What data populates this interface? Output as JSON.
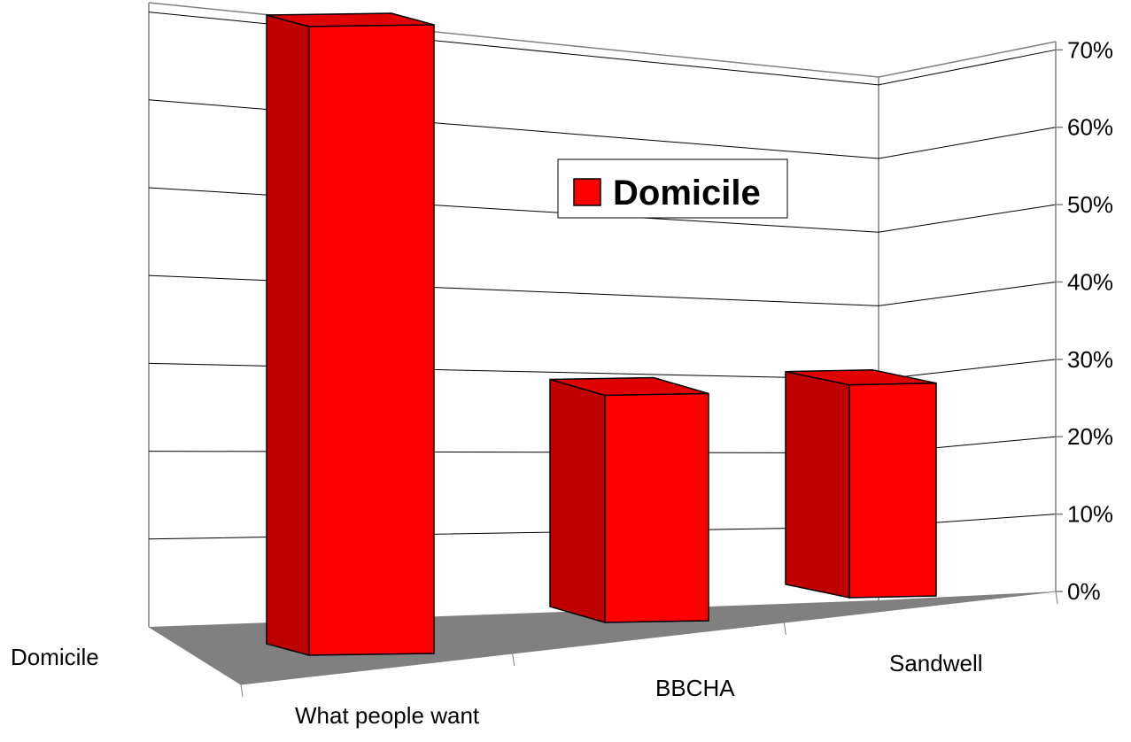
{
  "chart_data": {
    "type": "bar",
    "style": "3d-column",
    "title": "",
    "xlabel": "",
    "ylabel": "",
    "categories": [
      "What people want",
      "BBCHA",
      "Sandwell"
    ],
    "series": [
      {
        "name": "Domicile",
        "values": [
          71,
          27,
          27
        ]
      }
    ],
    "series_axis_label": "Domicile",
    "ylim": [
      0,
      70
    ],
    "yticks": [
      "0%",
      "10%",
      "20%",
      "30%",
      "40%",
      "50%",
      "60%",
      "70%"
    ],
    "grid": true,
    "legend": {
      "position": "center",
      "entries": [
        "Domicile"
      ]
    },
    "colors": {
      "bar_front": "#ff0000",
      "bar_side": "#c00000",
      "bar_top": "#e00000",
      "floor": "#808080",
      "gridline": "#000000",
      "wall_edge": "#808080"
    }
  }
}
